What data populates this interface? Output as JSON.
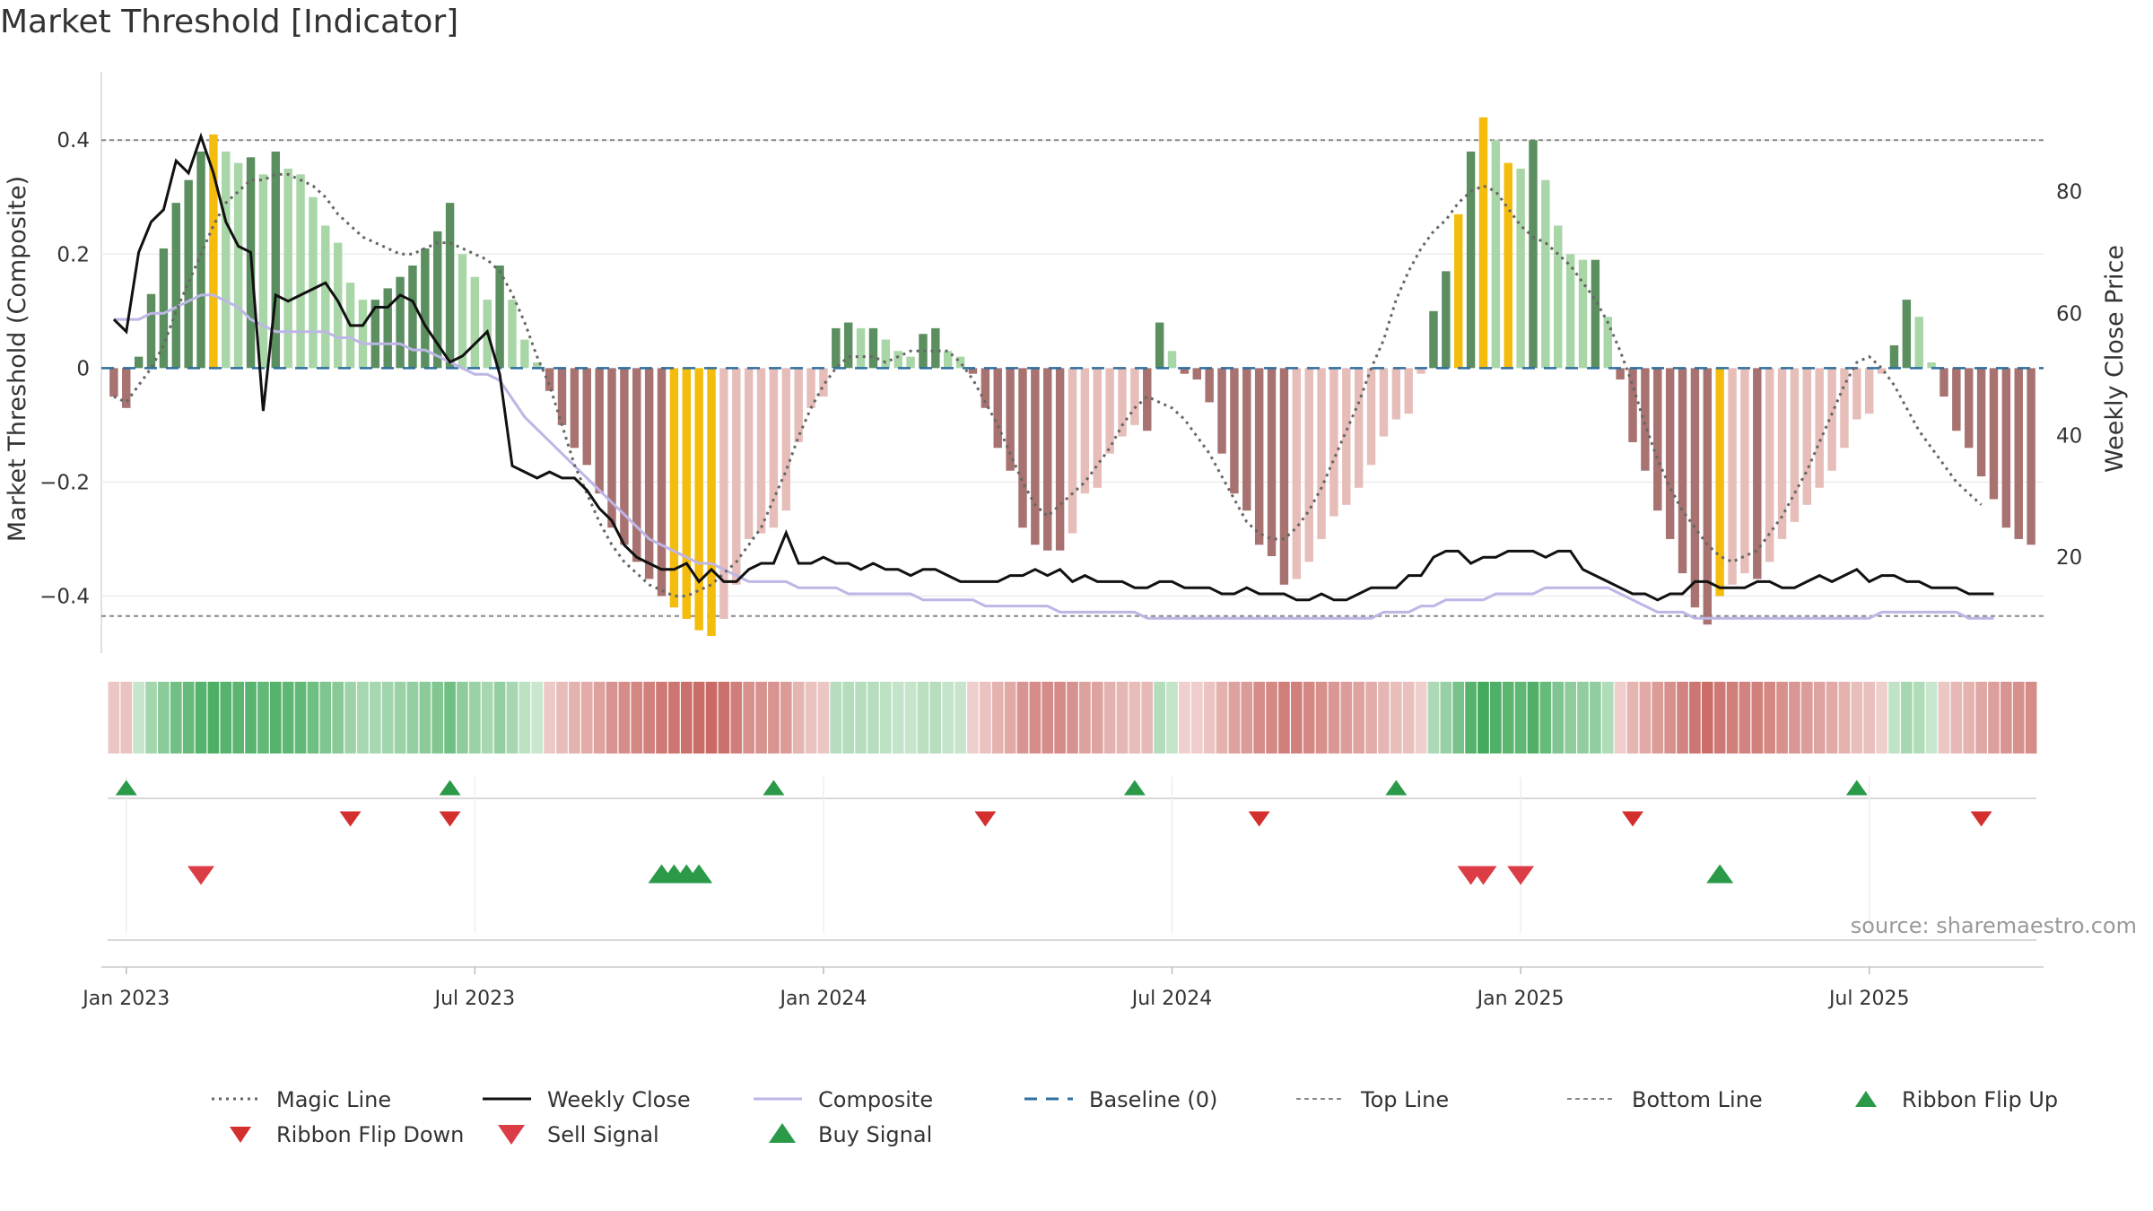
{
  "chart_data": {
    "type": "bar",
    "title": "Market Threshold [Indicator]",
    "ylabel": "Market Threshold (Composite)",
    "y2label": "Weekly Close Price",
    "ylim": [
      -0.5,
      0.52
    ],
    "y2lim": [
      4.3,
      99.6
    ],
    "yticks": [
      0.4,
      0.2,
      0,
      -0.2,
      -0.4
    ],
    "ytick_labels": [
      "0.4",
      "0.2",
      "0",
      "−0.2",
      "−0.4"
    ],
    "y2ticks": [
      80,
      60,
      40,
      20
    ],
    "y2tick_labels": [
      "80",
      "60",
      "40",
      "20"
    ],
    "x_range": [
      -1,
      155
    ],
    "x_ticks": [
      {
        "x": 1,
        "label": "Jan 2023"
      },
      {
        "x": 29,
        "label": "Jul 2023"
      },
      {
        "x": 57,
        "label": "Jan 2024"
      },
      {
        "x": 85,
        "label": "Jul 2024"
      },
      {
        "x": 113,
        "label": "Jan 2025"
      },
      {
        "x": 141,
        "label": "Jul 2025"
      }
    ],
    "top_line": 0.4,
    "bottom_line": -0.435,
    "composite_bars": [
      -0.05,
      -0.07,
      0.02,
      0.13,
      0.21,
      0.29,
      0.33,
      0.38,
      0.41,
      0.38,
      0.36,
      0.37,
      0.34,
      0.38,
      0.35,
      0.34,
      0.3,
      0.25,
      0.22,
      0.15,
      0.12,
      0.12,
      0.14,
      0.16,
      0.18,
      0.21,
      0.24,
      0.29,
      0.2,
      0.16,
      0.12,
      0.18,
      0.12,
      0.05,
      0.01,
      -0.04,
      -0.1,
      -0.14,
      -0.17,
      -0.22,
      -0.28,
      -0.31,
      -0.34,
      -0.37,
      -0.4,
      -0.42,
      -0.44,
      -0.46,
      -0.47,
      -0.44,
      -0.38,
      -0.3,
      -0.29,
      -0.28,
      -0.25,
      -0.13,
      -0.07,
      -0.05,
      0.07,
      0.08,
      0.07,
      0.07,
      0.05,
      0.03,
      0.02,
      0.06,
      0.07,
      0.03,
      0.02,
      -0.01,
      -0.07,
      -0.14,
      -0.18,
      -0.28,
      -0.31,
      -0.32,
      -0.32,
      -0.29,
      -0.22,
      -0.21,
      -0.15,
      -0.12,
      -0.1,
      -0.11,
      0.08,
      0.03,
      -0.01,
      -0.02,
      -0.06,
      -0.15,
      -0.22,
      -0.25,
      -0.31,
      -0.33,
      -0.38,
      -0.37,
      -0.34,
      -0.3,
      -0.26,
      -0.24,
      -0.21,
      -0.17,
      -0.12,
      -0.09,
      -0.08,
      -0.01,
      0.1,
      0.17,
      0.27,
      0.38,
      0.44,
      0.4,
      0.36,
      0.35,
      0.4,
      0.33,
      0.25,
      0.2,
      0.19,
      0.19,
      0.09,
      -0.02,
      -0.13,
      -0.18,
      -0.25,
      -0.3,
      -0.36,
      -0.42,
      -0.45,
      -0.4,
      -0.38,
      -0.36,
      -0.37,
      -0.34,
      -0.3,
      -0.27,
      -0.24,
      -0.21,
      -0.18,
      -0.14,
      -0.09,
      -0.08,
      -0.01,
      0.04,
      0.12,
      0.09,
      0.01,
      -0.05,
      -0.11,
      -0.14,
      -0.19,
      -0.23,
      -0.28,
      -0.3,
      -0.31
    ],
    "magic_line": [
      -0.05,
      -0.06,
      -0.03,
      0.0,
      0.04,
      0.1,
      0.15,
      0.2,
      0.25,
      0.29,
      0.31,
      0.33,
      0.33,
      0.34,
      0.34,
      0.33,
      0.32,
      0.3,
      0.27,
      0.25,
      0.23,
      0.22,
      0.21,
      0.2,
      0.2,
      0.21,
      0.22,
      0.22,
      0.21,
      0.2,
      0.19,
      0.17,
      0.13,
      0.08,
      0.02,
      -0.03,
      -0.1,
      -0.17,
      -0.22,
      -0.27,
      -0.31,
      -0.34,
      -0.36,
      -0.38,
      -0.39,
      -0.4,
      -0.4,
      -0.39,
      -0.38,
      -0.36,
      -0.34,
      -0.31,
      -0.28,
      -0.23,
      -0.18,
      -0.12,
      -0.07,
      -0.03,
      0.0,
      0.02,
      0.02,
      0.02,
      0.01,
      0.02,
      0.03,
      0.03,
      0.03,
      0.03,
      0.01,
      -0.02,
      -0.06,
      -0.1,
      -0.15,
      -0.2,
      -0.24,
      -0.26,
      -0.24,
      -0.22,
      -0.2,
      -0.17,
      -0.14,
      -0.1,
      -0.07,
      -0.05,
      -0.06,
      -0.07,
      -0.09,
      -0.12,
      -0.15,
      -0.19,
      -0.23,
      -0.27,
      -0.29,
      -0.3,
      -0.3,
      -0.28,
      -0.25,
      -0.21,
      -0.16,
      -0.11,
      -0.06,
      0.0,
      0.05,
      0.12,
      0.17,
      0.21,
      0.24,
      0.26,
      0.29,
      0.31,
      0.32,
      0.31,
      0.28,
      0.25,
      0.23,
      0.22,
      0.2,
      0.18,
      0.15,
      0.12,
      0.08,
      0.03,
      -0.03,
      -0.1,
      -0.16,
      -0.21,
      -0.25,
      -0.28,
      -0.31,
      -0.33,
      -0.34,
      -0.33,
      -0.32,
      -0.29,
      -0.26,
      -0.22,
      -0.18,
      -0.13,
      -0.08,
      -0.03,
      0.01,
      0.02,
      0.0,
      -0.03,
      -0.07,
      -0.11,
      -0.14,
      -0.17,
      -0.2,
      -0.22,
      -0.24
    ],
    "weekly_close": [
      59,
      57,
      70,
      75,
      77,
      85,
      83,
      89,
      83,
      75,
      71,
      70,
      44,
      63,
      62,
      63,
      64,
      65,
      62,
      58,
      58,
      61,
      61,
      63,
      62,
      58,
      55,
      52,
      53,
      55,
      57,
      50,
      35,
      34,
      33,
      34,
      33,
      33,
      31,
      28,
      26,
      22,
      20,
      19,
      18,
      18,
      19,
      16,
      18,
      16,
      16,
      18,
      19,
      19,
      24,
      19,
      19,
      20,
      19,
      19,
      18,
      19,
      18,
      18,
      17,
      18,
      18,
      17,
      16,
      16,
      16,
      16,
      17,
      17,
      18,
      17,
      18,
      16,
      17,
      16,
      16,
      16,
      15,
      15,
      16,
      16,
      15,
      15,
      15,
      14,
      14,
      15,
      14,
      14,
      14,
      13,
      13,
      14,
      13,
      13,
      14,
      15,
      15,
      15,
      17,
      17,
      20,
      21,
      21,
      19,
      20,
      20,
      21,
      21,
      21,
      20,
      21,
      21,
      18,
      17,
      16,
      15,
      14,
      14,
      13,
      14,
      14,
      16,
      16,
      15,
      15,
      15,
      16,
      16,
      15,
      15,
      16,
      17,
      16,
      17,
      18,
      16,
      17,
      17,
      16,
      16,
      15,
      15,
      15,
      14,
      14,
      14
    ],
    "composite_line": [
      59,
      59,
      59,
      60,
      60,
      61,
      62,
      63,
      63,
      62,
      61,
      59,
      58,
      57,
      57,
      57,
      57,
      57,
      56,
      56,
      55,
      55,
      55,
      55,
      54,
      54,
      53,
      52,
      51,
      50,
      50,
      49,
      46,
      43,
      41,
      39,
      37,
      35,
      33,
      31,
      29,
      27,
      25,
      23,
      22,
      21,
      20,
      19,
      19,
      18,
      17,
      16,
      16,
      16,
      16,
      15,
      15,
      15,
      15,
      14,
      14,
      14,
      14,
      14,
      14,
      13,
      13,
      13,
      13,
      13,
      12,
      12,
      12,
      12,
      12,
      12,
      11,
      11,
      11,
      11,
      11,
      11,
      11,
      10,
      10,
      10,
      10,
      10,
      10,
      10,
      10,
      10,
      10,
      10,
      10,
      10,
      10,
      10,
      10,
      10,
      10,
      10,
      11,
      11,
      11,
      12,
      12,
      13,
      13,
      13,
      13,
      14,
      14,
      14,
      14,
      15,
      15,
      15,
      15,
      15,
      15,
      14,
      13,
      12,
      11,
      11,
      11,
      10,
      10,
      10,
      10,
      10,
      10,
      10,
      10,
      10,
      10,
      10,
      10,
      10,
      10,
      10,
      11,
      11,
      11,
      11,
      11,
      11,
      11,
      10,
      10,
      10
    ],
    "highlight_bars": [
      8,
      45,
      46,
      47,
      48,
      108,
      110,
      112,
      129
    ],
    "ribbon_flip_up": [
      1,
      27,
      53,
      82,
      103,
      140
    ],
    "ribbon_flip_down": [
      19,
      27,
      70,
      92,
      122,
      150
    ],
    "sell_signals": [
      7,
      109,
      110,
      113
    ],
    "buy_signals": [
      44,
      45,
      46,
      47,
      129
    ],
    "source": "source: sharemaestro.com",
    "legend": [
      {
        "label": "Magic Line",
        "style": "dotted-dark"
      },
      {
        "label": "Weekly Close",
        "style": "solid-black"
      },
      {
        "label": "Composite",
        "style": "solid-lavender"
      },
      {
        "label": "Baseline (0)",
        "style": "dashed-blue"
      },
      {
        "label": "Top Line",
        "style": "dashed-grey"
      },
      {
        "label": "Bottom Line",
        "style": "dashed-grey"
      },
      {
        "label": "Ribbon Flip Up",
        "style": "triangle-up-green"
      },
      {
        "label": "Ribbon Flip Down",
        "style": "triangle-down-red"
      },
      {
        "label": "Sell Signal",
        "style": "triangle-down-red-large"
      },
      {
        "label": "Buy Signal",
        "style": "triangle-up-green-large"
      }
    ],
    "colors": {
      "pos_strong": "#5b8f5f",
      "pos_light": "#a9d6a6",
      "neg_strong": "#a77270",
      "neg_light": "#e6bdb9",
      "highlight": "#f4bc0c",
      "magic": "#666666",
      "close": "#111111",
      "composite": "#bdb6e6",
      "baseline": "#2f6f9f",
      "guide": "#888888",
      "up": "#2a9a48",
      "down": "#d32f2f",
      "sell": "#dc3c45"
    }
  }
}
